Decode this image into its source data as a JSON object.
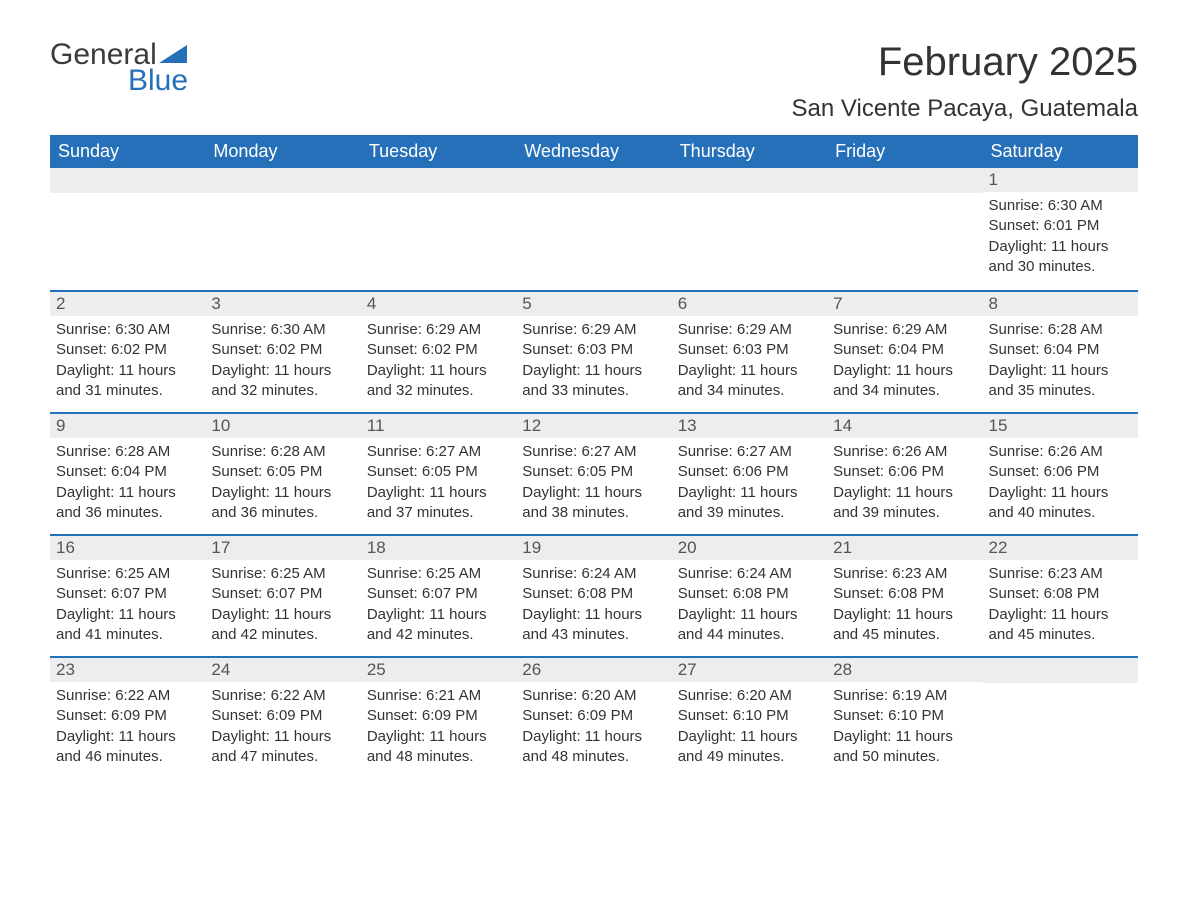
{
  "logo": {
    "top": "General",
    "bottom": "Blue",
    "icon_color": "#2570b8",
    "text_dark": "#3b3b3b"
  },
  "title": "February 2025",
  "location": "San Vicente Pacaya, Guatemala",
  "colors": {
    "header_bg": "#2570b8",
    "header_text": "#ffffff",
    "daynum_bg": "#ededed",
    "border": "#2570b8",
    "body_text": "#333333"
  },
  "weekdays": [
    "Sunday",
    "Monday",
    "Tuesday",
    "Wednesday",
    "Thursday",
    "Friday",
    "Saturday"
  ],
  "weeks": [
    [
      null,
      null,
      null,
      null,
      null,
      null,
      {
        "d": "1",
        "sr": "Sunrise: 6:30 AM",
        "ss": "Sunset: 6:01 PM",
        "dl": "Daylight: 11 hours and 30 minutes."
      }
    ],
    [
      {
        "d": "2",
        "sr": "Sunrise: 6:30 AM",
        "ss": "Sunset: 6:02 PM",
        "dl": "Daylight: 11 hours and 31 minutes."
      },
      {
        "d": "3",
        "sr": "Sunrise: 6:30 AM",
        "ss": "Sunset: 6:02 PM",
        "dl": "Daylight: 11 hours and 32 minutes."
      },
      {
        "d": "4",
        "sr": "Sunrise: 6:29 AM",
        "ss": "Sunset: 6:02 PM",
        "dl": "Daylight: 11 hours and 32 minutes."
      },
      {
        "d": "5",
        "sr": "Sunrise: 6:29 AM",
        "ss": "Sunset: 6:03 PM",
        "dl": "Daylight: 11 hours and 33 minutes."
      },
      {
        "d": "6",
        "sr": "Sunrise: 6:29 AM",
        "ss": "Sunset: 6:03 PM",
        "dl": "Daylight: 11 hours and 34 minutes."
      },
      {
        "d": "7",
        "sr": "Sunrise: 6:29 AM",
        "ss": "Sunset: 6:04 PM",
        "dl": "Daylight: 11 hours and 34 minutes."
      },
      {
        "d": "8",
        "sr": "Sunrise: 6:28 AM",
        "ss": "Sunset: 6:04 PM",
        "dl": "Daylight: 11 hours and 35 minutes."
      }
    ],
    [
      {
        "d": "9",
        "sr": "Sunrise: 6:28 AM",
        "ss": "Sunset: 6:04 PM",
        "dl": "Daylight: 11 hours and 36 minutes."
      },
      {
        "d": "10",
        "sr": "Sunrise: 6:28 AM",
        "ss": "Sunset: 6:05 PM",
        "dl": "Daylight: 11 hours and 36 minutes."
      },
      {
        "d": "11",
        "sr": "Sunrise: 6:27 AM",
        "ss": "Sunset: 6:05 PM",
        "dl": "Daylight: 11 hours and 37 minutes."
      },
      {
        "d": "12",
        "sr": "Sunrise: 6:27 AM",
        "ss": "Sunset: 6:05 PM",
        "dl": "Daylight: 11 hours and 38 minutes."
      },
      {
        "d": "13",
        "sr": "Sunrise: 6:27 AM",
        "ss": "Sunset: 6:06 PM",
        "dl": "Daylight: 11 hours and 39 minutes."
      },
      {
        "d": "14",
        "sr": "Sunrise: 6:26 AM",
        "ss": "Sunset: 6:06 PM",
        "dl": "Daylight: 11 hours and 39 minutes."
      },
      {
        "d": "15",
        "sr": "Sunrise: 6:26 AM",
        "ss": "Sunset: 6:06 PM",
        "dl": "Daylight: 11 hours and 40 minutes."
      }
    ],
    [
      {
        "d": "16",
        "sr": "Sunrise: 6:25 AM",
        "ss": "Sunset: 6:07 PM",
        "dl": "Daylight: 11 hours and 41 minutes."
      },
      {
        "d": "17",
        "sr": "Sunrise: 6:25 AM",
        "ss": "Sunset: 6:07 PM",
        "dl": "Daylight: 11 hours and 42 minutes."
      },
      {
        "d": "18",
        "sr": "Sunrise: 6:25 AM",
        "ss": "Sunset: 6:07 PM",
        "dl": "Daylight: 11 hours and 42 minutes."
      },
      {
        "d": "19",
        "sr": "Sunrise: 6:24 AM",
        "ss": "Sunset: 6:08 PM",
        "dl": "Daylight: 11 hours and 43 minutes."
      },
      {
        "d": "20",
        "sr": "Sunrise: 6:24 AM",
        "ss": "Sunset: 6:08 PM",
        "dl": "Daylight: 11 hours and 44 minutes."
      },
      {
        "d": "21",
        "sr": "Sunrise: 6:23 AM",
        "ss": "Sunset: 6:08 PM",
        "dl": "Daylight: 11 hours and 45 minutes."
      },
      {
        "d": "22",
        "sr": "Sunrise: 6:23 AM",
        "ss": "Sunset: 6:08 PM",
        "dl": "Daylight: 11 hours and 45 minutes."
      }
    ],
    [
      {
        "d": "23",
        "sr": "Sunrise: 6:22 AM",
        "ss": "Sunset: 6:09 PM",
        "dl": "Daylight: 11 hours and 46 minutes."
      },
      {
        "d": "24",
        "sr": "Sunrise: 6:22 AM",
        "ss": "Sunset: 6:09 PM",
        "dl": "Daylight: 11 hours and 47 minutes."
      },
      {
        "d": "25",
        "sr": "Sunrise: 6:21 AM",
        "ss": "Sunset: 6:09 PM",
        "dl": "Daylight: 11 hours and 48 minutes."
      },
      {
        "d": "26",
        "sr": "Sunrise: 6:20 AM",
        "ss": "Sunset: 6:09 PM",
        "dl": "Daylight: 11 hours and 48 minutes."
      },
      {
        "d": "27",
        "sr": "Sunrise: 6:20 AM",
        "ss": "Sunset: 6:10 PM",
        "dl": "Daylight: 11 hours and 49 minutes."
      },
      {
        "d": "28",
        "sr": "Sunrise: 6:19 AM",
        "ss": "Sunset: 6:10 PM",
        "dl": "Daylight: 11 hours and 50 minutes."
      },
      null
    ]
  ]
}
